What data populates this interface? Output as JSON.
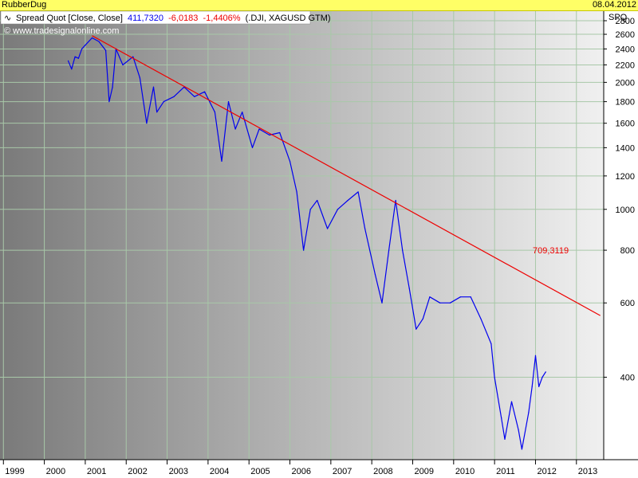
{
  "header": {
    "chart_name": "RubberDug",
    "date": "08.04.2012"
  },
  "legend": {
    "title": "Spread Quot [Close, Close]",
    "last_value": "411,7320",
    "change": "-6,0183",
    "change_pct": "-1,4406%",
    "instruments": "(.DJI, XAGUSD GTM)",
    "watermark": "© www.tradesignalonline.com"
  },
  "colors": {
    "series": "#0000ee",
    "trendline": "#ee0000",
    "grid": "#a8c8a8",
    "header_bg": "#ffff66"
  },
  "chart_data": {
    "type": "line",
    "y_axis_label": "SPQ",
    "y_scale": "log",
    "ylim": [
      255,
      2950
    ],
    "y_ticks": [
      400,
      600,
      800,
      1000,
      1200,
      1400,
      1600,
      1800,
      2000,
      2200,
      2400,
      2600,
      2800
    ],
    "x_ticks": [
      "1999",
      "2000",
      "2001",
      "2002",
      "2003",
      "2004",
      "2005",
      "2006",
      "2007",
      "2008",
      "2009",
      "2010",
      "2011",
      "2012",
      "2013"
    ],
    "xlim": [
      "1998-12",
      "2013-09"
    ],
    "series": [
      {
        "values": [
          [
            "2000-08",
            2250
          ],
          [
            "2000-09",
            2150
          ],
          [
            "2000-10",
            2300
          ],
          [
            "2000-11",
            2280
          ],
          [
            "2000-12",
            2400
          ],
          [
            "2001-01",
            2450
          ],
          [
            "2001-03",
            2550
          ],
          [
            "2001-05",
            2500
          ],
          [
            "2001-07",
            2380
          ],
          [
            "2001-08",
            1800
          ],
          [
            "2001-09",
            1950
          ],
          [
            "2001-10",
            2400
          ],
          [
            "2001-12",
            2200
          ],
          [
            "2002-03",
            2300
          ],
          [
            "2002-05",
            2050
          ],
          [
            "2002-07",
            1600
          ],
          [
            "2002-09",
            1950
          ],
          [
            "2002-10",
            1700
          ],
          [
            "2002-12",
            1800
          ],
          [
            "2003-03",
            1850
          ],
          [
            "2003-06",
            1950
          ],
          [
            "2003-09",
            1850
          ],
          [
            "2003-12",
            1900
          ],
          [
            "2004-03",
            1700
          ],
          [
            "2004-05",
            1300
          ],
          [
            "2004-07",
            1800
          ],
          [
            "2004-09",
            1550
          ],
          [
            "2004-11",
            1700
          ],
          [
            "2005-02",
            1400
          ],
          [
            "2005-04",
            1550
          ],
          [
            "2005-07",
            1500
          ],
          [
            "2005-10",
            1520
          ],
          [
            "2006-01",
            1300
          ],
          [
            "2006-03",
            1100
          ],
          [
            "2006-05",
            800
          ],
          [
            "2006-07",
            1000
          ],
          [
            "2006-09",
            1050
          ],
          [
            "2006-12",
            900
          ],
          [
            "2007-03",
            1000
          ],
          [
            "2007-06",
            1050
          ],
          [
            "2007-09",
            1100
          ],
          [
            "2007-11",
            900
          ],
          [
            "2008-02",
            700
          ],
          [
            "2008-04",
            600
          ],
          [
            "2008-06",
            800
          ],
          [
            "2008-08",
            1050
          ],
          [
            "2008-10",
            800
          ],
          [
            "2008-12",
            650
          ],
          [
            "2009-02",
            520
          ],
          [
            "2009-04",
            550
          ],
          [
            "2009-06",
            620
          ],
          [
            "2009-09",
            600
          ],
          [
            "2009-12",
            600
          ],
          [
            "2010-03",
            620
          ],
          [
            "2010-06",
            620
          ],
          [
            "2010-09",
            550
          ],
          [
            "2010-12",
            480
          ],
          [
            "2011-01",
            400
          ],
          [
            "2011-03",
            320
          ],
          [
            "2011-04",
            285
          ],
          [
            "2011-06",
            350
          ],
          [
            "2011-08",
            300
          ],
          [
            "2011-09",
            270
          ],
          [
            "2011-11",
            330
          ],
          [
            "2011-12",
            380
          ],
          [
            "2012-01",
            450
          ],
          [
            "2012-02",
            380
          ],
          [
            "2012-03",
            400
          ],
          [
            "2012-04",
            411.732
          ]
        ]
      }
    ],
    "trendline": {
      "start": [
        "2001-03",
        2580
      ],
      "end": [
        "2013-08",
        560
      ],
      "label": "709,3119"
    }
  }
}
